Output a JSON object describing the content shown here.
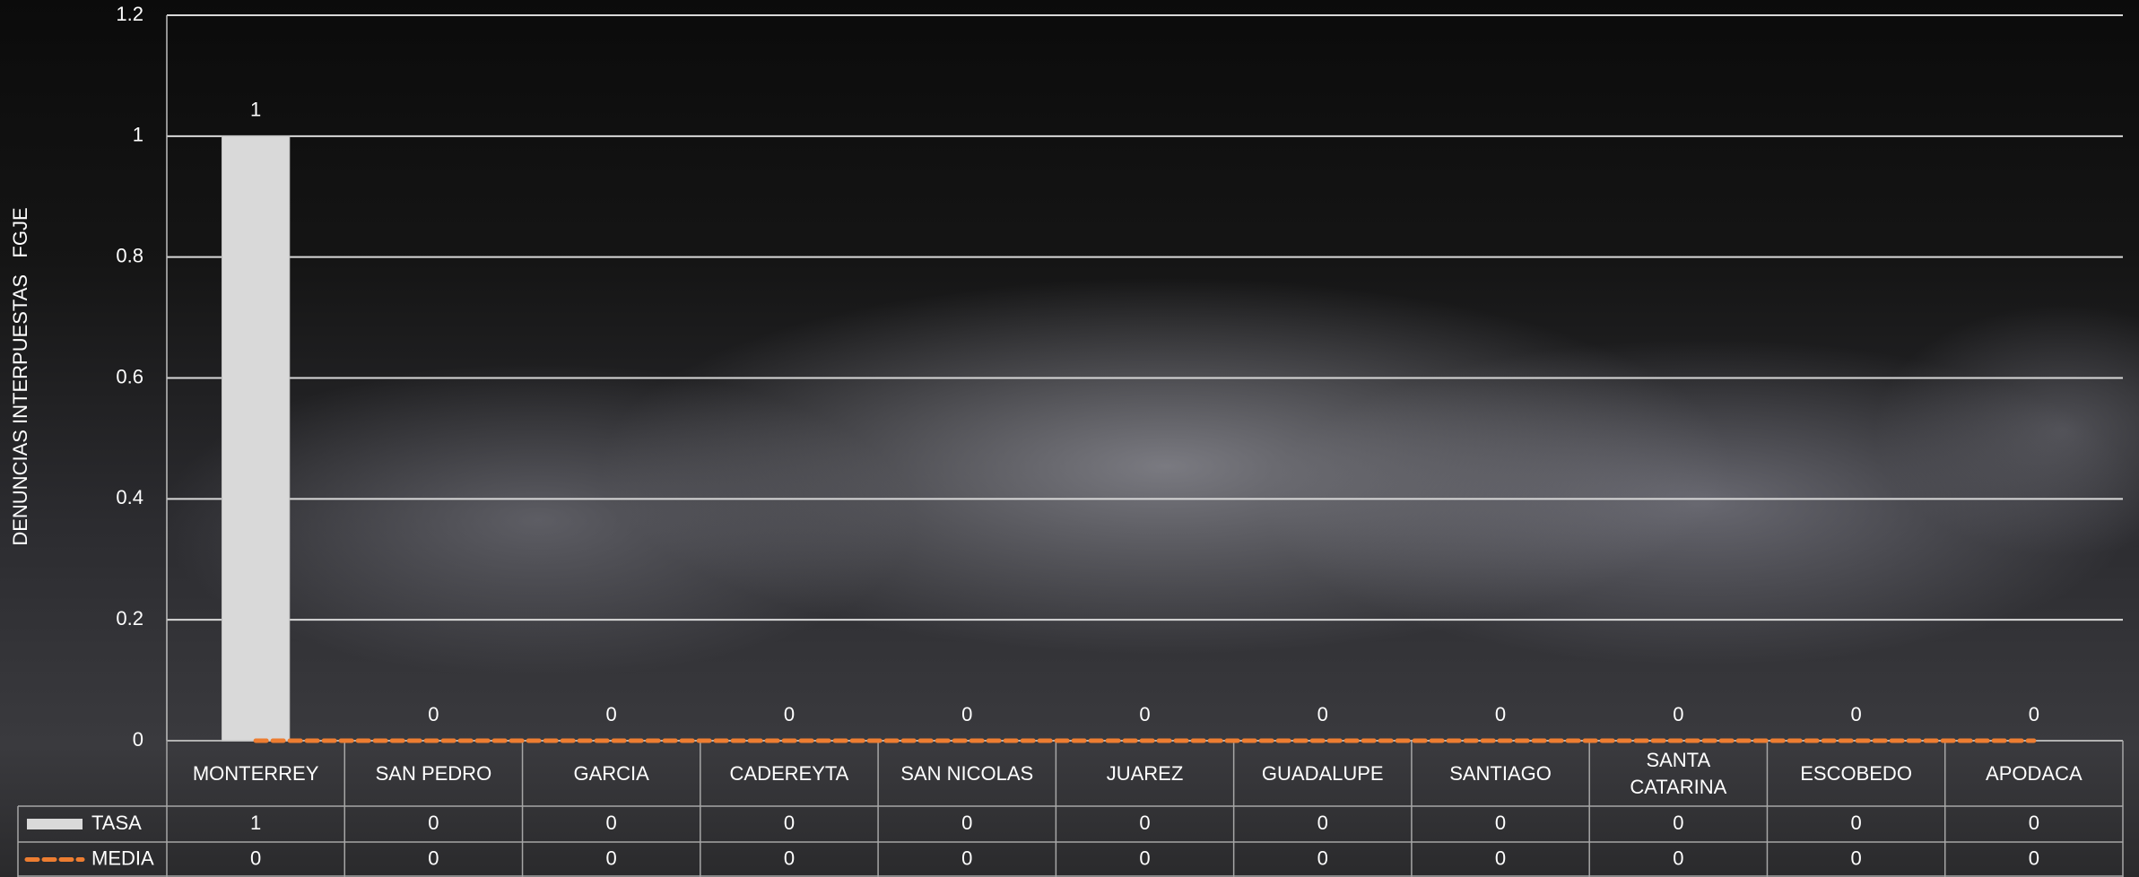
{
  "chart_data": {
    "type": "bar",
    "y_axis_label": "DENUNCIAS INTERPUESTAS   FGJE",
    "categories": [
      "MONTERREY",
      "SAN PEDRO",
      "GARCIA",
      "CADEREYTA",
      "SAN NICOLAS",
      "JUAREZ",
      "GUADALUPE",
      "SANTIAGO",
      "SANTA CATARINA",
      "ESCOBEDO",
      "APODACA"
    ],
    "series": [
      {
        "name": "TASA",
        "type": "bar",
        "color": "#d9d9d9",
        "values": [
          1,
          0,
          0,
          0,
          0,
          0,
          0,
          0,
          0,
          0,
          0
        ]
      },
      {
        "name": "MEDIA",
        "type": "line",
        "color": "#ed7d31",
        "values": [
          0,
          0,
          0,
          0,
          0,
          0,
          0,
          0,
          0,
          0,
          0
        ]
      }
    ],
    "ylim": [
      0,
      1.2
    ],
    "yticks": [
      0,
      0.2,
      0.4,
      0.6,
      0.8,
      1,
      1.2
    ],
    "grid": true,
    "data_table": true
  }
}
